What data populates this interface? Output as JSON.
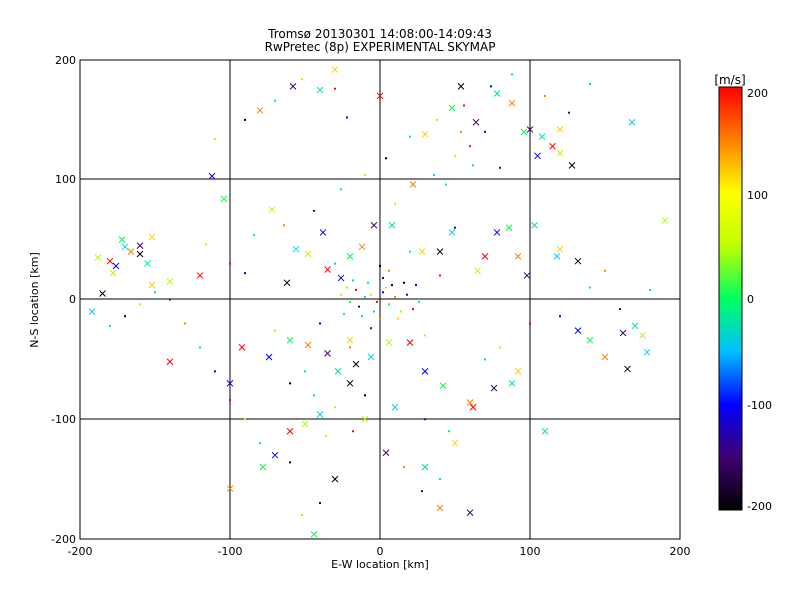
{
  "chart_data": {
    "type": "scatter",
    "title": "Tromsø 20130301 14:08:00-14:09:43",
    "subtitle": "RwPretec (8p) EXPERIMENTAL SKYMAP",
    "xlabel": "E-W location [km]",
    "ylabel": "N-S location [km]",
    "xlim": [
      -200,
      200
    ],
    "ylim": [
      -200,
      200
    ],
    "xticks": [
      "-200",
      "-100",
      "0",
      "100",
      "200"
    ],
    "yticks": [
      "-200",
      "-100",
      "0",
      "100",
      "200"
    ],
    "grid": true,
    "colorbar": {
      "label": "[m/s]",
      "range": [
        -200,
        200
      ],
      "ticks": [
        "200",
        "100",
        "0",
        "-100",
        "-200"
      ],
      "colormap": [
        "#000000",
        "#400070",
        "#0000ff",
        "#00c0ff",
        "#00ff60",
        "#c0ff00",
        "#ffff00",
        "#ff8000",
        "#ff0000"
      ]
    },
    "series": [
      {
        "marker": "x",
        "points": [
          [
            -188,
            35
          ],
          [
            -180,
            32
          ],
          [
            -176,
            28
          ],
          [
            -172,
            50
          ],
          [
            -166,
            40
          ],
          [
            -160,
            45
          ],
          [
            -155,
            30
          ],
          [
            -152,
            52
          ],
          [
            -185,
            5
          ],
          [
            -192,
            -10
          ],
          [
            -140,
            15
          ],
          [
            -120,
            20
          ],
          [
            -112,
            103
          ],
          [
            -104,
            84
          ],
          [
            -80,
            158
          ],
          [
            -58,
            178
          ],
          [
            -40,
            175
          ],
          [
            -30,
            192
          ],
          [
            -62,
            14
          ],
          [
            -56,
            42
          ],
          [
            -48,
            38
          ],
          [
            -35,
            25
          ],
          [
            -26,
            18
          ],
          [
            -20,
            36
          ],
          [
            -12,
            44
          ],
          [
            -4,
            62
          ],
          [
            8,
            62
          ],
          [
            28,
            40
          ],
          [
            40,
            40
          ],
          [
            48,
            56
          ],
          [
            65,
            24
          ],
          [
            70,
            36
          ],
          [
            78,
            56
          ],
          [
            86,
            60
          ],
          [
            92,
            36
          ],
          [
            98,
            20
          ],
          [
            103,
            62
          ],
          [
            120,
            42
          ],
          [
            132,
            32
          ],
          [
            118,
            36
          ],
          [
            120,
            122
          ],
          [
            115,
            128
          ],
          [
            105,
            120
          ],
          [
            96,
            140
          ],
          [
            88,
            164
          ],
          [
            100,
            142
          ],
          [
            108,
            136
          ],
          [
            120,
            142
          ],
          [
            128,
            112
          ],
          [
            168,
            148
          ],
          [
            -72,
            75
          ],
          [
            -92,
            -40
          ],
          [
            -74,
            -48
          ],
          [
            -60,
            -34
          ],
          [
            -48,
            -38
          ],
          [
            -35,
            -45
          ],
          [
            -28,
            -60
          ],
          [
            -20,
            -34
          ],
          [
            -16,
            -54
          ],
          [
            -6,
            -48
          ],
          [
            6,
            -36
          ],
          [
            20,
            -36
          ],
          [
            30,
            -60
          ],
          [
            42,
            -72
          ],
          [
            60,
            -86
          ],
          [
            76,
            -74
          ],
          [
            88,
            -70
          ],
          [
            92,
            -60
          ],
          [
            -20,
            -70
          ],
          [
            -40,
            -96
          ],
          [
            -50,
            -104
          ],
          [
            -60,
            -110
          ],
          [
            -70,
            -130
          ],
          [
            -78,
            -140
          ],
          [
            -100,
            -158
          ],
          [
            4,
            -128
          ],
          [
            30,
            -140
          ],
          [
            50,
            -120
          ],
          [
            -30,
            -150
          ],
          [
            10,
            -90
          ],
          [
            -10,
            -100
          ],
          [
            62,
            -90
          ],
          [
            132,
            -26
          ],
          [
            140,
            -34
          ],
          [
            150,
            -48
          ],
          [
            162,
            -28
          ],
          [
            170,
            -22
          ],
          [
            175,
            -30
          ],
          [
            165,
            -58
          ],
          [
            178,
            -44
          ],
          [
            190,
            66
          ],
          [
            -140,
            -52
          ],
          [
            -100,
            -70
          ],
          [
            -44,
            -196
          ],
          [
            40,
            -174
          ],
          [
            60,
            -178
          ],
          [
            110,
            -110
          ],
          [
            -152,
            12
          ],
          [
            -160,
            38
          ],
          [
            -170,
            44
          ],
          [
            -178,
            22
          ],
          [
            0,
            170
          ],
          [
            -38,
            56
          ],
          [
            48,
            160
          ],
          [
            22,
            96
          ],
          [
            64,
            148
          ],
          [
            78,
            172
          ],
          [
            30,
            138
          ],
          [
            54,
            178
          ]
        ]
      },
      {
        "marker": "dot",
        "points": [
          [
            -10,
            2
          ],
          [
            -6,
            4
          ],
          [
            -2,
            -2
          ],
          [
            2,
            6
          ],
          [
            6,
            -4
          ],
          [
            10,
            2
          ],
          [
            -14,
            -6
          ],
          [
            -4,
            -10
          ],
          [
            4,
            10
          ],
          [
            8,
            12
          ],
          [
            -8,
            14
          ],
          [
            14,
            -10
          ],
          [
            -16,
            8
          ],
          [
            18,
            4
          ],
          [
            -20,
            -2
          ],
          [
            0,
            -16
          ],
          [
            2,
            18
          ],
          [
            -12,
            -14
          ],
          [
            12,
            -16
          ],
          [
            16,
            14
          ],
          [
            -18,
            16
          ],
          [
            -22,
            10
          ],
          [
            22,
            -8
          ],
          [
            24,
            12
          ],
          [
            -24,
            -12
          ],
          [
            6,
            24
          ],
          [
            -6,
            -24
          ],
          [
            26,
            -2
          ],
          [
            -26,
            4
          ],
          [
            0,
            28
          ],
          [
            -30,
            30
          ],
          [
            30,
            -30
          ],
          [
            40,
            20
          ],
          [
            -40,
            -20
          ],
          [
            20,
            40
          ],
          [
            -20,
            -40
          ],
          [
            50,
            60
          ],
          [
            -50,
            -60
          ],
          [
            10,
            80
          ],
          [
            -10,
            -80
          ],
          [
            36,
            104
          ],
          [
            50,
            120
          ],
          [
            60,
            128
          ],
          [
            70,
            140
          ],
          [
            44,
            96
          ],
          [
            54,
            140
          ],
          [
            80,
            110
          ],
          [
            62,
            112
          ],
          [
            -36,
            -114
          ],
          [
            -60,
            -136
          ],
          [
            -80,
            -120
          ],
          [
            -90,
            -100
          ],
          [
            -100,
            -84
          ],
          [
            -110,
            -60
          ],
          [
            -120,
            -40
          ],
          [
            -130,
            -20
          ],
          [
            -140,
            0
          ],
          [
            -150,
            6
          ],
          [
            -70,
            -26
          ],
          [
            -60,
            -70
          ],
          [
            -44,
            -80
          ],
          [
            -30,
            -90
          ],
          [
            -18,
            -110
          ],
          [
            30,
            -100
          ],
          [
            46,
            -110
          ],
          [
            16,
            -140
          ],
          [
            28,
            -160
          ],
          [
            40,
            -150
          ],
          [
            -52,
            -180
          ],
          [
            -40,
            -170
          ],
          [
            70,
            -50
          ],
          [
            80,
            -40
          ],
          [
            100,
            -20
          ],
          [
            120,
            -14
          ],
          [
            140,
            10
          ],
          [
            150,
            24
          ],
          [
            160,
            -8
          ],
          [
            180,
            8
          ],
          [
            -160,
            -4
          ],
          [
            -170,
            -14
          ],
          [
            -180,
            -22
          ],
          [
            -116,
            46
          ],
          [
            -100,
            30
          ],
          [
            -90,
            22
          ],
          [
            -84,
            54
          ],
          [
            -64,
            62
          ],
          [
            -44,
            74
          ],
          [
            -26,
            92
          ],
          [
            -10,
            104
          ],
          [
            4,
            118
          ],
          [
            20,
            136
          ],
          [
            38,
            150
          ],
          [
            56,
            162
          ],
          [
            74,
            178
          ],
          [
            88,
            188
          ],
          [
            110,
            170
          ],
          [
            126,
            156
          ],
          [
            140,
            180
          ],
          [
            -110,
            134
          ],
          [
            -90,
            150
          ],
          [
            -70,
            166
          ],
          [
            -52,
            184
          ],
          [
            -30,
            176
          ],
          [
            -22,
            152
          ]
        ]
      }
    ]
  }
}
